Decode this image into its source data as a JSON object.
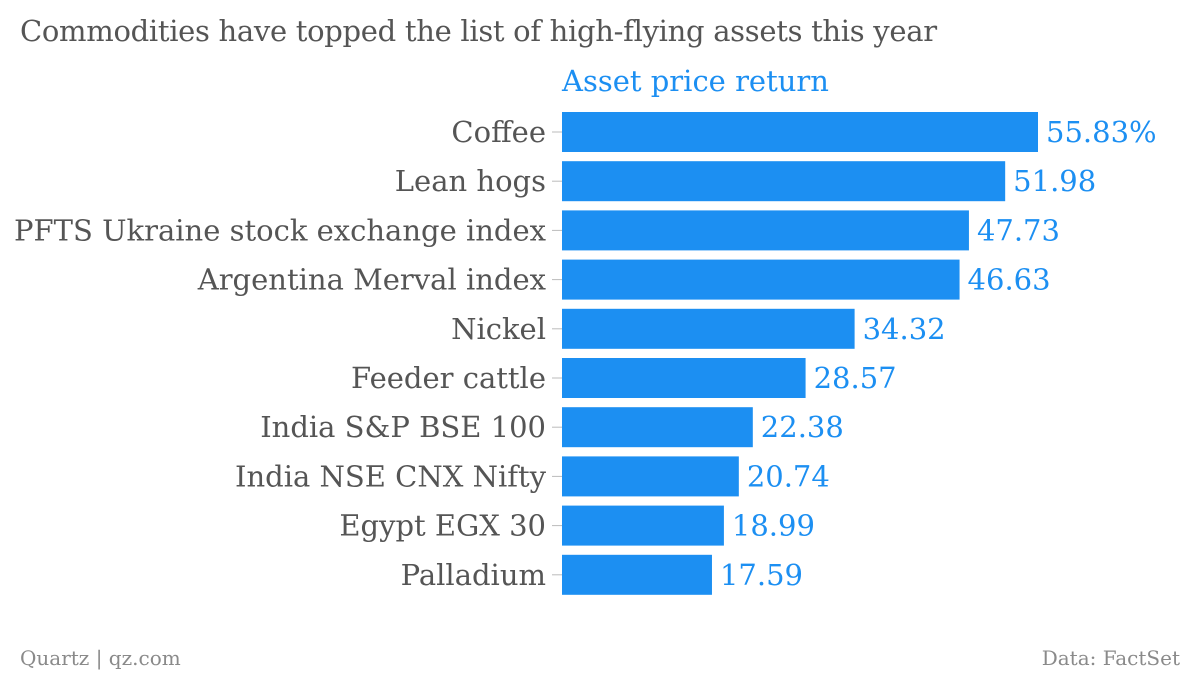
{
  "title": "Commodities have topped the list of high-flying assets this year",
  "footer": {
    "source_left": "Quartz | qz.com",
    "source_right": "Data: FactSet"
  },
  "colors": {
    "bar": "#1c8ff2",
    "text": "#555555",
    "muted": "#8a8a8a",
    "tick": "#bbbbbb"
  },
  "chart_data": {
    "type": "bar",
    "orientation": "horizontal",
    "series": [
      {
        "name": "Asset price return",
        "values": [
          55.83,
          51.98,
          47.73,
          46.63,
          34.32,
          28.57,
          22.38,
          20.74,
          18.99,
          17.59
        ]
      }
    ],
    "categories": [
      "Coffee",
      "Lean hogs",
      "PFTS Ukraine stock exchange index",
      "Argentina Merval index",
      "Nickel",
      "Feeder cattle",
      "India S&P BSE 100",
      "India NSE CNX Nifty",
      "Egypt EGX 30",
      "Palladium"
    ],
    "value_labels": [
      "55.83%",
      "51.98",
      "47.73",
      "46.63",
      "34.32",
      "28.57",
      "22.38",
      "20.74",
      "18.99",
      "17.59"
    ],
    "xlim": [
      0,
      55.83
    ],
    "grid": false,
    "legend": "none"
  }
}
